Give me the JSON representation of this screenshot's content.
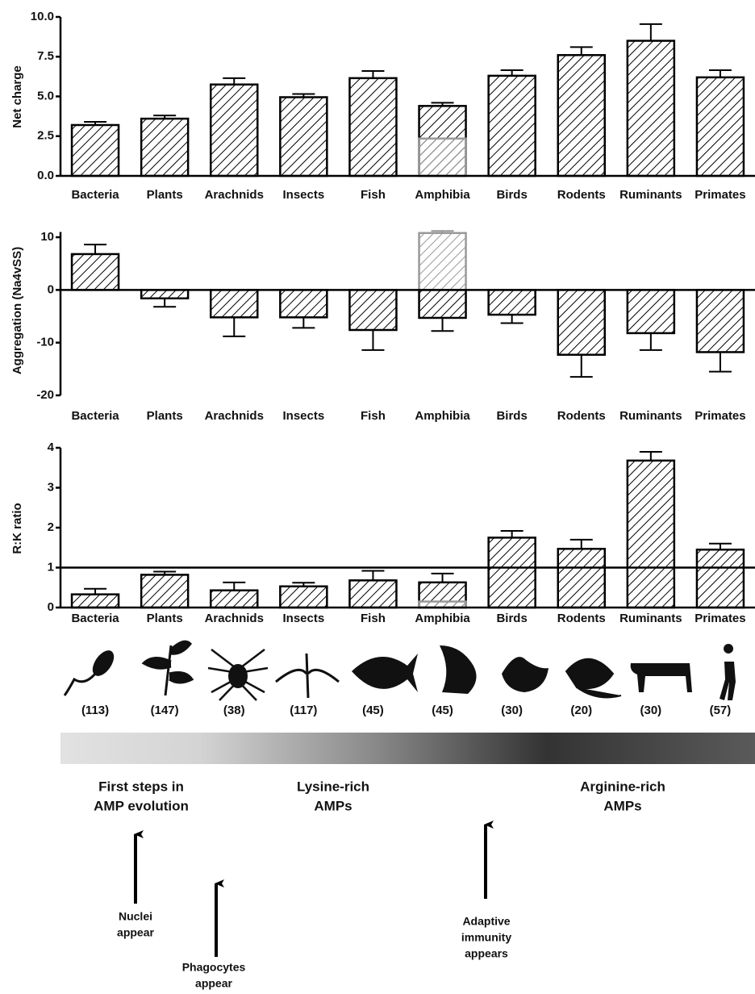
{
  "chart_data": [
    {
      "type": "bar",
      "ylabel": "Net charge",
      "categories": [
        "Bacteria",
        "Plants",
        "Arachnids",
        "Insects",
        "Fish",
        "Amphibia",
        "Birds",
        "Rodents",
        "Ruminants",
        "Primates"
      ],
      "series": [
        {
          "color": "#000000",
          "values": [
            3.2,
            3.6,
            5.75,
            4.95,
            6.15,
            4.4,
            6.3,
            7.6,
            8.5,
            6.2
          ],
          "errors": [
            0.2,
            0.2,
            0.4,
            0.2,
            0.45,
            0.2,
            0.35,
            0.5,
            1.05,
            0.45
          ]
        },
        {
          "color": "#999999",
          "values": [
            null,
            null,
            null,
            null,
            null,
            2.35,
            null,
            null,
            null,
            null
          ]
        }
      ],
      "ylim": [
        0,
        10
      ],
      "yticks": [
        {
          "value": 0,
          "label": "0.0"
        },
        {
          "value": 2.5,
          "label": "2.5"
        },
        {
          "value": 5,
          "label": "5.0"
        },
        {
          "value": 7.5,
          "label": "7.5"
        },
        {
          "value": 10,
          "label": "10.0"
        }
      ]
    },
    {
      "type": "bar",
      "ylabel": "Aggregation (Na4vSS)",
      "categories": [
        "Bacteria",
        "Plants",
        "Arachnids",
        "Insects",
        "Fish",
        "Amphibia",
        "Birds",
        "Rodents",
        "Ruminants",
        "Primates"
      ],
      "series": [
        {
          "color": "#000000",
          "values": [
            6.8,
            -1.6,
            -5.2,
            -5.2,
            -7.6,
            -5.3,
            -4.7,
            -12.3,
            -8.2,
            -11.8
          ],
          "errors": [
            1.8,
            1.6,
            3.6,
            2.0,
            3.8,
            2.5,
            1.6,
            4.2,
            3.2,
            3.7
          ]
        },
        {
          "color": "#999999",
          "values": [
            null,
            null,
            null,
            null,
            null,
            10.8,
            null,
            null,
            null,
            null
          ],
          "errors": [
            null,
            null,
            null,
            null,
            null,
            0.4,
            null,
            null,
            null,
            null
          ]
        }
      ],
      "ylim": [
        -20,
        11
      ],
      "yticks": [
        -20,
        -10,
        0,
        10
      ]
    },
    {
      "type": "bar",
      "ylabel": "R:K ratio",
      "categories": [
        "Bacteria",
        "Plants",
        "Arachnids",
        "Insects",
        "Fish",
        "Amphibia",
        "Birds",
        "Rodents",
        "Ruminants",
        "Primates"
      ],
      "series": [
        {
          "color": "#000000",
          "values": [
            0.33,
            0.82,
            0.43,
            0.53,
            0.68,
            0.63,
            1.75,
            1.47,
            3.68,
            1.45
          ],
          "errors": [
            0.14,
            0.08,
            0.2,
            0.09,
            0.24,
            0.22,
            0.17,
            0.23,
            0.22,
            0.15
          ]
        },
        {
          "color": "#999999",
          "values": [
            null,
            null,
            null,
            null,
            null,
            0.15,
            null,
            null,
            null,
            null
          ]
        }
      ],
      "ylim": [
        0,
        4
      ],
      "yticks": [
        0,
        1,
        2,
        3,
        4
      ],
      "reference_line": 1
    }
  ],
  "counts": [
    "(113)",
    "(147)",
    "(38)",
    "(117)",
    "(45)",
    "(45)",
    "(30)",
    "(20)",
    "(30)",
    "(57)"
  ],
  "stages": [
    {
      "lines": [
        "First steps in",
        "AMP evolution"
      ]
    },
    {
      "lines": [
        "Lysine-rich",
        "AMPs"
      ]
    },
    {
      "lines": [
        "Arginine-rich",
        "AMPs"
      ]
    }
  ],
  "events": [
    {
      "lines": [
        "Nuclei",
        "appear"
      ]
    },
    {
      "lines": [
        "Phagocytes",
        "appear"
      ]
    },
    {
      "lines": [
        "Adaptive",
        "immunity",
        "appears"
      ]
    }
  ]
}
